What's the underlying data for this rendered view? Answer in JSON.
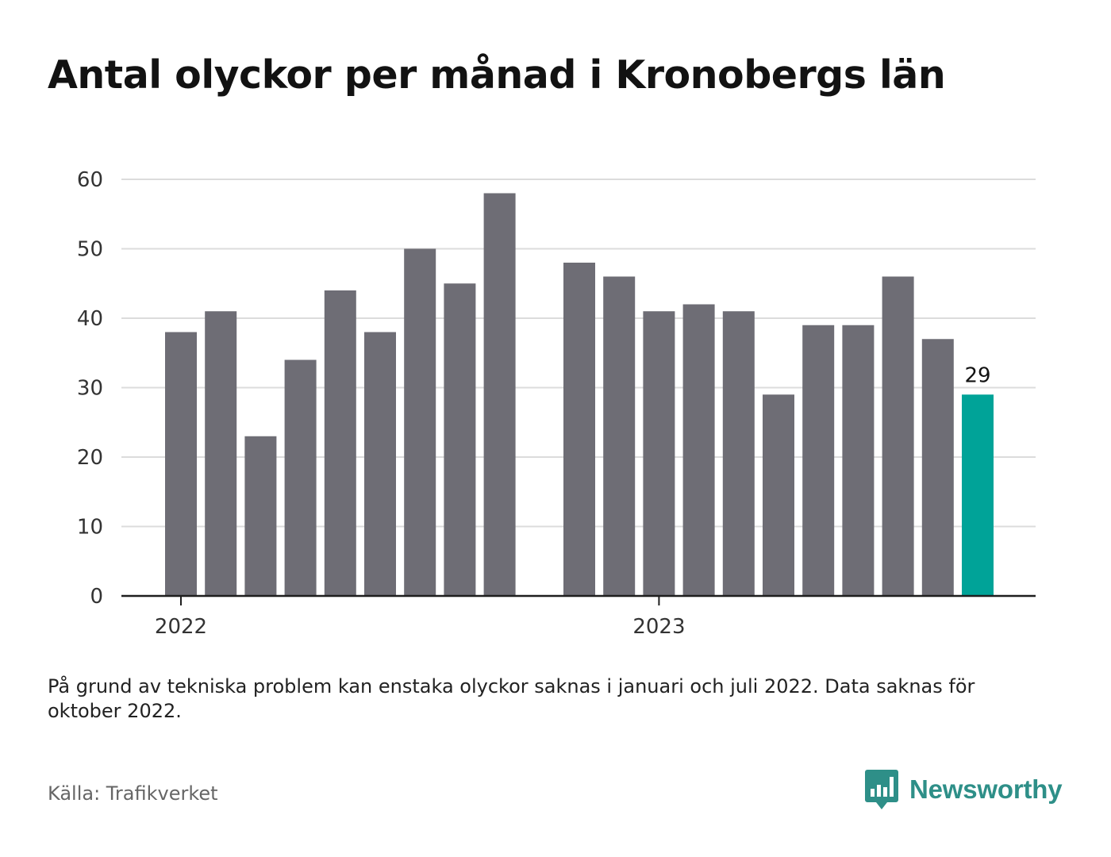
{
  "title": "Antal olyckor per månad i Kronobergs län",
  "note": "På grund av tekniska problem kan enstaka olyckor saknas i januari och juli 2022. Data saknas för oktober 2022.",
  "source": "Källa: Trafikverket",
  "brand": {
    "name": "Newsworthy",
    "icon": "newsworthy-logo-icon",
    "color": "#2e8f88"
  },
  "chart_data": {
    "type": "bar",
    "x": [
      "2022-01",
      "2022-02",
      "2022-03",
      "2022-04",
      "2022-05",
      "2022-06",
      "2022-07",
      "2022-08",
      "2022-09",
      "2022-11",
      "2022-12",
      "2023-01",
      "2023-02",
      "2023-03",
      "2023-04",
      "2023-05",
      "2023-06",
      "2023-07",
      "2023-08",
      "2023-09"
    ],
    "values": [
      38,
      41,
      23,
      34,
      44,
      38,
      50,
      45,
      58,
      48,
      46,
      41,
      42,
      41,
      29,
      39,
      39,
      46,
      37,
      29
    ],
    "x_ticks": [
      "2022",
      "2023"
    ],
    "ylim": [
      0,
      60
    ],
    "y_ticks": [
      0,
      10,
      20,
      30,
      40,
      50,
      60
    ],
    "xlabel": "",
    "ylabel": "",
    "highlight": {
      "x": "2023-09",
      "label": "29",
      "color": "#00a398"
    },
    "bar_color": "#6e6d75",
    "grid": true
  }
}
